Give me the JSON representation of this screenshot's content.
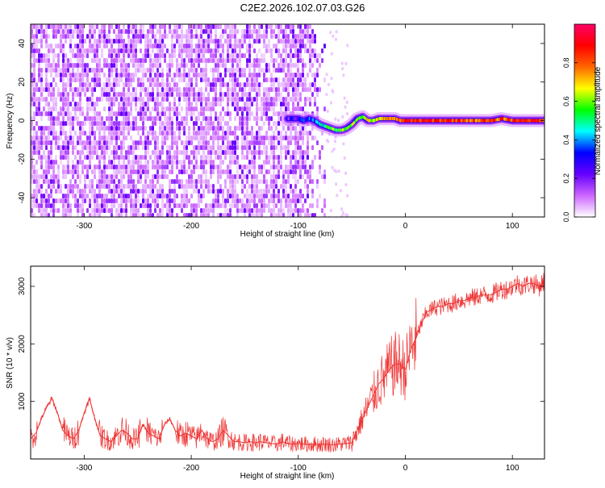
{
  "page": {
    "title": "C2E2.2026.102.07.03.G26"
  },
  "chart_data": [
    {
      "type": "heatmap",
      "xlabel": "Height of straight line (km)",
      "ylabel": "Frequency (Hz)",
      "xlim": [
        -350,
        130
      ],
      "ylim": [
        -50,
        50
      ],
      "xticks": [
        -300,
        -200,
        -100,
        0,
        100
      ],
      "xtick_labels": [
        "-300",
        "-200",
        "-100",
        "0",
        "100"
      ],
      "yticks": [
        -40,
        -20,
        0,
        20,
        40
      ],
      "ytick_labels": [
        "-40",
        "-20",
        "0",
        "20",
        "40"
      ],
      "colorbar": {
        "label": "Normalized spectral amplitude",
        "range": [
          0,
          1
        ],
        "ticks": [
          0.0,
          0.2,
          0.4,
          0.6,
          0.8
        ],
        "tick_labels": [
          "0.0",
          "0.2",
          "0.4",
          "0.6",
          "0.8"
        ],
        "colors": [
          "#ffffff",
          "#cc66ff",
          "#6600ff",
          "#0000ff",
          "#00ffff",
          "#00ff00",
          "#ffff00",
          "#ff6600",
          "#ff0000",
          "#ff0066"
        ]
      },
      "noise_region": {
        "x_range": [
          -350,
          -75
        ],
        "y_range": [
          -50,
          50
        ],
        "mean_amplitude": 0.15
      },
      "signal_track": {
        "x": [
          -110,
          -100,
          -95,
          -90,
          -85,
          -80,
          -75,
          -70,
          -65,
          -60,
          -55,
          -50,
          -45,
          -40,
          -35,
          -30,
          -25,
          -20,
          -15,
          -10,
          -5,
          0,
          10,
          20,
          30,
          40,
          50,
          60,
          70,
          80,
          90,
          100,
          110,
          120,
          130
        ],
        "frequency": [
          1,
          1,
          0,
          1,
          0,
          -2,
          -3,
          -4,
          -5,
          -5,
          -4,
          -2,
          1,
          2,
          0,
          0,
          1,
          1,
          1,
          1,
          0,
          0,
          0,
          0,
          0,
          0,
          0,
          0,
          0,
          0,
          1,
          0,
          0,
          0,
          0
        ],
        "amplitude": [
          0.25,
          0.3,
          0.3,
          0.35,
          0.4,
          0.45,
          0.5,
          0.55,
          0.55,
          0.6,
          0.6,
          0.65,
          0.6,
          0.6,
          0.65,
          0.6,
          0.7,
          0.7,
          0.75,
          0.75,
          0.8,
          0.85,
          0.85,
          0.85,
          0.85,
          0.85,
          0.85,
          0.8,
          0.8,
          0.8,
          0.8,
          0.85,
          0.9,
          0.85,
          0.8
        ]
      }
    },
    {
      "type": "line",
      "xlabel": "Height of straight line (km)",
      "ylabel": "SNR (10 * v/v)",
      "xlim": [
        -350,
        130
      ],
      "ylim": [
        0,
        3350
      ],
      "xticks": [
        -300,
        -200,
        -100,
        0,
        100
      ],
      "xtick_labels": [
        "-300",
        "-200",
        "-100",
        "0",
        "100"
      ],
      "yticks": [
        1000,
        2000,
        3000
      ],
      "ytick_labels": [
        "1000",
        "2000",
        "3000"
      ],
      "series": [
        {
          "color": "#ee3333",
          "x": [
            -350,
            -345,
            -340,
            -335,
            -330,
            -325,
            -320,
            -315,
            -310,
            -305,
            -300,
            -295,
            -290,
            -285,
            -280,
            -275,
            -270,
            -265,
            -260,
            -255,
            -250,
            -245,
            -240,
            -235,
            -230,
            -225,
            -220,
            -215,
            -210,
            -205,
            -200,
            -195,
            -190,
            -185,
            -180,
            -175,
            -170,
            -165,
            -160,
            -155,
            -150,
            -145,
            -140,
            -135,
            -130,
            -125,
            -120,
            -115,
            -110,
            -105,
            -100,
            -95,
            -90,
            -85,
            -80,
            -75,
            -70,
            -65,
            -60,
            -55,
            -50,
            -45,
            -40,
            -35,
            -30,
            -25,
            -20,
            -15,
            -10,
            -5,
            0,
            5,
            10,
            15,
            20,
            25,
            30,
            35,
            40,
            45,
            50,
            55,
            60,
            65,
            70,
            75,
            80,
            85,
            90,
            95,
            100,
            105,
            110,
            115,
            120,
            125,
            130
          ],
          "y": [
            350,
            450,
            700,
            900,
            1050,
            800,
            500,
            400,
            350,
            500,
            800,
            1050,
            700,
            400,
            350,
            300,
            400,
            500,
            450,
            350,
            350,
            600,
            450,
            400,
            350,
            600,
            700,
            500,
            400,
            450,
            400,
            350,
            500,
            350,
            300,
            350,
            500,
            400,
            300,
            300,
            280,
            300,
            280,
            300,
            280,
            270,
            260,
            300,
            270,
            260,
            270,
            260,
            250,
            260,
            250,
            260,
            250,
            250,
            260,
            270,
            280,
            500,
            700,
            900,
            1100,
            1300,
            1400,
            1550,
            1650,
            1650,
            1550,
            1900,
            2100,
            2350,
            2550,
            2600,
            2650,
            2650,
            2700,
            2700,
            2750,
            2750,
            2800,
            2800,
            2850,
            2850,
            2850,
            2900,
            2950,
            2950,
            3000,
            3050,
            3000,
            3050,
            3050,
            3000,
            3100
          ]
        }
      ]
    }
  ]
}
